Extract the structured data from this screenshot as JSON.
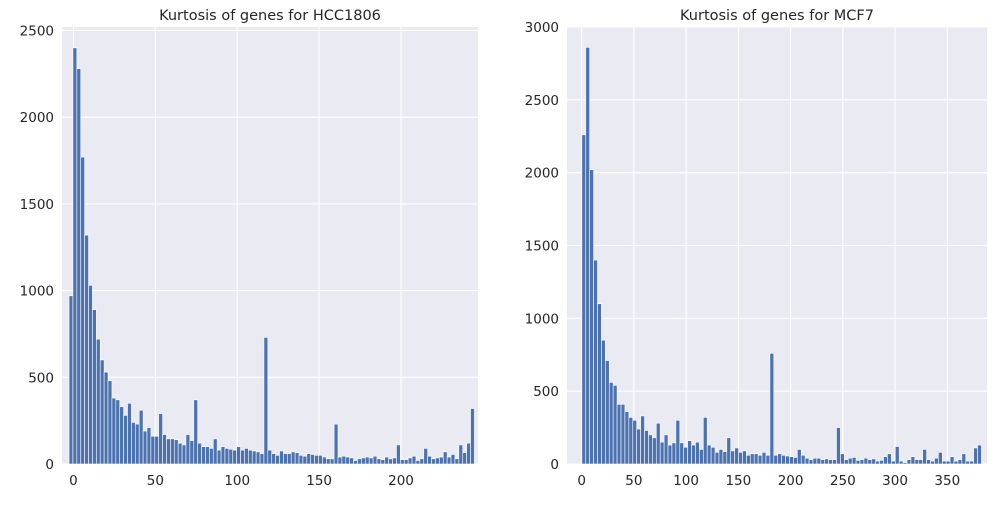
{
  "chart_data": [
    {
      "type": "bar",
      "title": "Kurtosis of genes for HCC1806",
      "xlabel": "",
      "ylabel": "",
      "grid": true,
      "xlim": [
        -7,
        247
      ],
      "ylim": [
        0,
        2520
      ],
      "xticks": [
        0,
        50,
        100,
        150,
        200
      ],
      "yticks": [
        0,
        500,
        1000,
        1500,
        2000,
        2500
      ],
      "bin_start": -2.7,
      "bin_width": 2.38,
      "values": [
        970,
        2400,
        2280,
        1770,
        1320,
        1030,
        890,
        720,
        600,
        530,
        480,
        380,
        370,
        330,
        280,
        350,
        240,
        230,
        310,
        190,
        210,
        160,
        160,
        290,
        170,
        145,
        145,
        140,
        120,
        110,
        170,
        135,
        370,
        120,
        100,
        100,
        90,
        145,
        80,
        100,
        90,
        85,
        80,
        100,
        80,
        90,
        80,
        75,
        70,
        60,
        730,
        80,
        60,
        50,
        75,
        60,
        60,
        70,
        65,
        50,
        45,
        60,
        55,
        50,
        50,
        40,
        30,
        30,
        230,
        40,
        45,
        40,
        35,
        20,
        30,
        35,
        40,
        35,
        45,
        30,
        25,
        40,
        30,
        35,
        110,
        25,
        25,
        35,
        45,
        20,
        30,
        90,
        45,
        30,
        35,
        40,
        70,
        40,
        55,
        30,
        110,
        65,
        120,
        320
      ]
    },
    {
      "type": "bar",
      "title": "Kurtosis of genes for MCF7",
      "xlabel": "",
      "ylabel": "",
      "grid": true,
      "xlim": [
        -14,
        388
      ],
      "ylim": [
        0,
        3000
      ],
      "xticks": [
        0,
        50,
        100,
        150,
        200,
        250,
        300,
        350
      ],
      "yticks": [
        0,
        500,
        1000,
        1500,
        2000,
        2500,
        3000
      ],
      "bin_start": 0.2,
      "bin_width": 3.75,
      "values": [
        2260,
        2860,
        2020,
        1400,
        1100,
        850,
        710,
        560,
        540,
        410,
        410,
        360,
        320,
        300,
        240,
        330,
        230,
        200,
        180,
        280,
        150,
        200,
        130,
        145,
        300,
        145,
        115,
        160,
        130,
        150,
        100,
        320,
        130,
        115,
        80,
        100,
        85,
        180,
        90,
        110,
        80,
        90,
        60,
        70,
        70,
        60,
        80,
        60,
        760,
        60,
        70,
        60,
        55,
        50,
        45,
        100,
        60,
        40,
        30,
        40,
        40,
        30,
        35,
        30,
        30,
        250,
        70,
        30,
        40,
        45,
        25,
        30,
        40,
        30,
        35,
        20,
        25,
        50,
        70,
        20,
        120,
        20,
        10,
        30,
        50,
        30,
        30,
        100,
        30,
        20,
        40,
        80,
        20,
        20,
        50,
        20,
        30,
        70,
        20,
        20,
        110,
        130
      ]
    }
  ]
}
